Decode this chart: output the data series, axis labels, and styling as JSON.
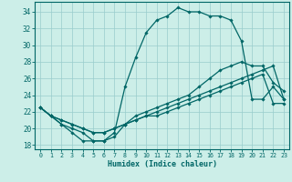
{
  "xlabel": "Humidex (Indice chaleur)",
  "bg_color": "#cceee8",
  "grid_color": "#99cccc",
  "line_color": "#006666",
  "xlim_min": -0.5,
  "xlim_max": 23.5,
  "ylim_min": 17.5,
  "ylim_max": 35.2,
  "xticks": [
    0,
    1,
    2,
    3,
    4,
    5,
    6,
    7,
    8,
    9,
    10,
    11,
    12,
    13,
    14,
    15,
    16,
    17,
    18,
    19,
    20,
    21,
    22,
    23
  ],
  "yticks": [
    18,
    20,
    22,
    24,
    26,
    28,
    30,
    32,
    34
  ],
  "series": [
    {
      "x": [
        0,
        1,
        2,
        3,
        4,
        5,
        6,
        7,
        8,
        9,
        10,
        11,
        12,
        13,
        14,
        15,
        16,
        17,
        18,
        19,
        20,
        21,
        22,
        23
      ],
      "y": [
        22.5,
        21.5,
        20.5,
        19.5,
        18.5,
        18.5,
        18.5,
        19.5,
        25.0,
        28.5,
        31.5,
        33.0,
        33.5,
        34.5,
        34.0,
        34.0,
        33.5,
        33.5,
        33.0,
        30.5,
        23.5,
        23.5,
        25.0,
        23.5
      ]
    },
    {
      "x": [
        0,
        1,
        2,
        3,
        4,
        5,
        6,
        7,
        8,
        9,
        10,
        11,
        12,
        13,
        14,
        15,
        16,
        17,
        18,
        19,
        20,
        21,
        22,
        23
      ],
      "y": [
        22.5,
        21.5,
        20.5,
        20.0,
        19.5,
        18.5,
        18.5,
        19.0,
        20.5,
        21.5,
        22.0,
        22.5,
        23.0,
        23.5,
        24.0,
        25.0,
        26.0,
        27.0,
        27.5,
        28.0,
        27.5,
        27.5,
        25.5,
        24.5
      ]
    },
    {
      "x": [
        0,
        1,
        2,
        3,
        4,
        5,
        6,
        7,
        8,
        9,
        10,
        11,
        12,
        13,
        14,
        15,
        16,
        17,
        18,
        19,
        20,
        21,
        22,
        23
      ],
      "y": [
        22.5,
        21.5,
        21.0,
        20.5,
        20.0,
        19.5,
        19.5,
        20.0,
        20.5,
        21.0,
        21.5,
        22.0,
        22.5,
        23.0,
        23.5,
        24.0,
        24.5,
        25.0,
        25.5,
        26.0,
        26.5,
        27.0,
        27.5,
        23.5
      ]
    },
    {
      "x": [
        0,
        1,
        2,
        3,
        4,
        5,
        6,
        7,
        8,
        9,
        10,
        11,
        12,
        13,
        14,
        15,
        16,
        17,
        18,
        19,
        20,
        21,
        22,
        23
      ],
      "y": [
        22.5,
        21.5,
        21.0,
        20.5,
        20.0,
        19.5,
        19.5,
        20.0,
        20.5,
        21.0,
        21.5,
        21.5,
        22.0,
        22.5,
        23.0,
        23.5,
        24.0,
        24.5,
        25.0,
        25.5,
        26.0,
        26.5,
        23.0,
        23.0
      ]
    }
  ]
}
